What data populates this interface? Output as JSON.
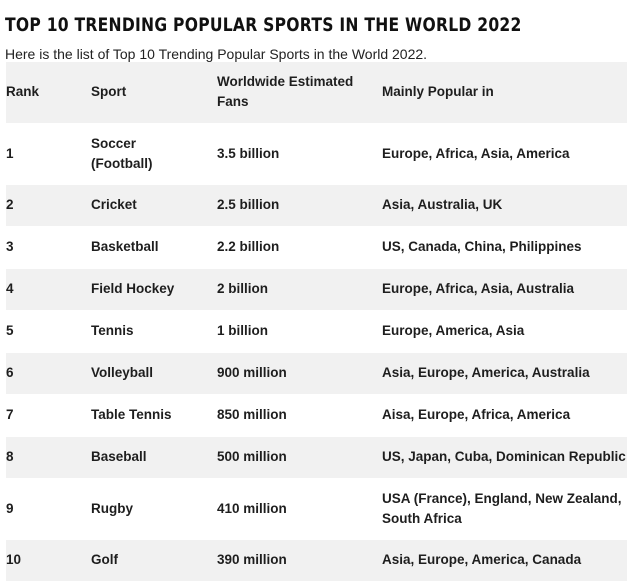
{
  "page": {
    "title": "TOP 10 TRENDING POPULAR SPORTS IN THE WORLD 2022",
    "intro": "Here is the list of Top 10 Trending Popular Sports in the World 2022."
  },
  "table": {
    "headers": {
      "rank": "Rank",
      "sport": "Sport",
      "fans": "Worldwide Estimated Fans",
      "region": "Mainly Popular in"
    },
    "rows": [
      {
        "rank": "1",
        "sport": "Soccer (Football)",
        "fans": "3.5 billion",
        "region": "Europe, Africa, Asia, America"
      },
      {
        "rank": "2",
        "sport": "Cricket",
        "fans": "2.5 billion",
        "region": "Asia, Australia, UK"
      },
      {
        "rank": "3",
        "sport": "Basketball",
        "fans": "2.2 billion",
        "region": "US, Canada, China, Philippines"
      },
      {
        "rank": "4",
        "sport": "Field Hockey",
        "fans": "2 billion",
        "region": "Europe, Africa, Asia, Australia"
      },
      {
        "rank": "5",
        "sport": "Tennis",
        "fans": "1 billion",
        "region": "Europe, America, Asia"
      },
      {
        "rank": "6",
        "sport": "Volleyball",
        "fans": "900 million",
        "region": "Asia, Europe, America, Australia"
      },
      {
        "rank": "7",
        "sport": "Table Tennis",
        "fans": "850 million",
        "region": "Aisa, Europe, Africa, America"
      },
      {
        "rank": "8",
        "sport": "Baseball",
        "fans": "500 million",
        "region": "US, Japan, Cuba, Dominican Republic"
      },
      {
        "rank": "9",
        "sport": "Rugby",
        "fans": "410 million",
        "region": "USA (France), England, New Zealand, South Africa"
      },
      {
        "rank": "10",
        "sport": "Golf",
        "fans": "390 million",
        "region": "Asia, Europe, America, Canada"
      }
    ]
  }
}
